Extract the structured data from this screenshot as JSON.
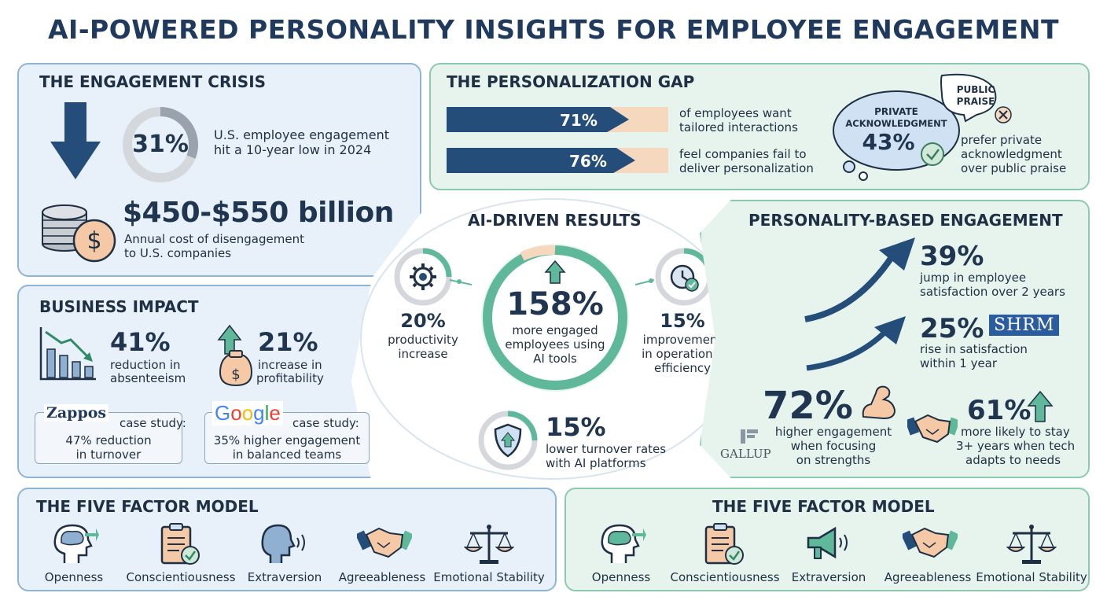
{
  "title": "AI-POWERED PERSONALITY INSIGHTS FOR EMPLOYEE ENGAGEMENT",
  "crisis": {
    "heading": "THE ENGAGEMENT CRISIS",
    "stat": "31%",
    "stat_ring_fraction": 0.31,
    "stat_text_1": "U.S. employee engagement",
    "stat_text_2": "hit a 10-year low in 2024",
    "cost": "$450-$550 billion",
    "cost_text_1": "Annual cost of disengagement",
    "cost_text_2": "to U.S. companies"
  },
  "gap": {
    "heading": "THE PERSONALIZATION GAP",
    "bars": [
      {
        "value": "71%",
        "fraction": 0.71,
        "text_1": "of employees want",
        "text_2": "tailored interactions"
      },
      {
        "value": "76%",
        "fraction": 0.76,
        "text_1": "feel companies fail to",
        "text_2": "deliver personalization"
      }
    ],
    "private_label_1": "PRIVATE",
    "private_label_2": "ACKNOWLEDGMENT",
    "private_value": "43%",
    "public_label_1": "PUBLIC",
    "public_label_2": "PRAISE",
    "bubble_text_1": "prefer private",
    "bubble_text_2": "acknowledgment",
    "bubble_text_3": "over public praise"
  },
  "impact": {
    "heading": "BUSINESS IMPACT",
    "absent_value": "41%",
    "absent_text_1": "reduction in",
    "absent_text_2": "absenteeism",
    "profit_value": "21%",
    "profit_text_1": "increase in",
    "profit_text_2": "profitability",
    "zappos_logo": "Zappos",
    "zappos_label": "case study:",
    "zappos_text_1": "47% reduction",
    "zappos_text_2": "in turnover",
    "google_logo": "Google",
    "google_label": "case study:",
    "google_text_1": "35% higher engagement",
    "google_text_2": "in balanced teams"
  },
  "results": {
    "heading": "AI-DRIVEN RESULTS",
    "center_value": "158%",
    "center_text_1": "more engaged",
    "center_text_2": "employees using",
    "center_text_3": "AI tools",
    "productivity_value": "20%",
    "productivity_text_1": "productivity",
    "productivity_text_2": "increase",
    "efficiency_value": "15%",
    "efficiency_text_1": "improvement",
    "efficiency_text_2": "in operational",
    "efficiency_text_3": "efficiency",
    "turnover_value": "15%",
    "turnover_text_1": "lower turnover rates",
    "turnover_text_2": "with AI platforms"
  },
  "personality": {
    "heading": "PERSONALITY-BASED ENGAGEMENT",
    "s1_value": "39%",
    "s1_text_1": "jump in employee",
    "s1_text_2": "satisfaction over 2 years",
    "s2_value": "25%",
    "s2_logo": "SHRM",
    "s2_text_1": "rise in satisfaction",
    "s2_text_2": "within 1 year",
    "s3_value": "72%",
    "s3_logo": "GALLUP",
    "s3_text_1": "higher engagement",
    "s3_text_2": "when focusing",
    "s3_text_3": "on strengths",
    "s4_value": "61%",
    "s4_text_1": "more likely to stay",
    "s4_text_2": "3+ years when tech",
    "s4_text_3": "adapts to needs"
  },
  "ffm_left": {
    "heading": "THE FIVE FACTOR MODEL",
    "factors": [
      "Openness",
      "Conscientiousness",
      "Extraversion",
      "Agreeableness",
      "Emotional Stability"
    ]
  },
  "ffm_right": {
    "heading": "THE FIVE FACTOR MODEL",
    "factors": [
      "Openness",
      "Conscientiousness",
      "Extraversion",
      "Agreeableness",
      "Emotional Stability"
    ]
  },
  "colors": {
    "navy": "#1f3a5c",
    "teal": "#5fb89a",
    "peach": "#f6d8bf",
    "blue_panel": "#e8f1f9",
    "green_panel": "#e7f4ee"
  }
}
